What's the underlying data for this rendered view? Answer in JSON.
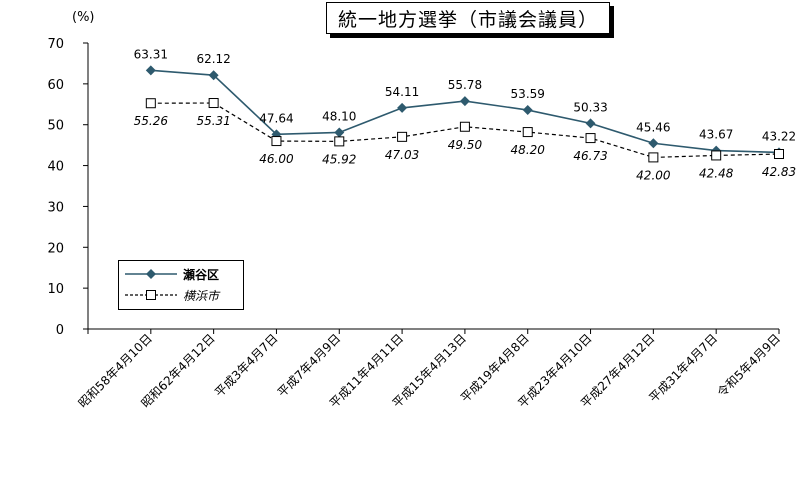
{
  "chart_data": {
    "type": "line",
    "title": "統一地方選挙（市議会議員）",
    "unit_label": "(%)",
    "categories": [
      "昭和58年4月10日",
      "昭和62年4月12日",
      "平成3年4月7日",
      "平成7年4月9日",
      "平成11年4月11日",
      "平成15年4月13日",
      "平成19年4月8日",
      "平成23年4月10日",
      "平成27年4月12日",
      "平成31年4月7日",
      "令和5年4月9日"
    ],
    "ylim": [
      0,
      70
    ],
    "yticks": [
      0,
      10,
      20,
      30,
      40,
      50,
      60,
      70
    ],
    "grid": false,
    "legend_position": "lower-left",
    "series": [
      {
        "name": "瀬谷区",
        "values": [
          63.31,
          62.12,
          47.64,
          48.1,
          54.11,
          55.78,
          53.59,
          50.33,
          45.46,
          43.67,
          43.22
        ],
        "labels": [
          "63.31",
          "62.12",
          "47.64",
          "48.10",
          "54.11",
          "55.78",
          "53.59",
          "50.33",
          "45.46",
          "43.67",
          "43.22"
        ],
        "color": "#2e5a6e",
        "marker": "diamond",
        "line": "solid"
      },
      {
        "name": "横浜市",
        "values": [
          55.26,
          55.31,
          46.0,
          45.92,
          47.03,
          49.5,
          48.2,
          46.73,
          42.0,
          42.48,
          42.83
        ],
        "labels": [
          "55.26",
          "55.31",
          "46.00",
          "45.92",
          "47.03",
          "49.50",
          "48.20",
          "46.73",
          "42.00",
          "42.48",
          "42.83"
        ],
        "color": "#000000",
        "marker": "square",
        "line": "dashed"
      }
    ]
  }
}
